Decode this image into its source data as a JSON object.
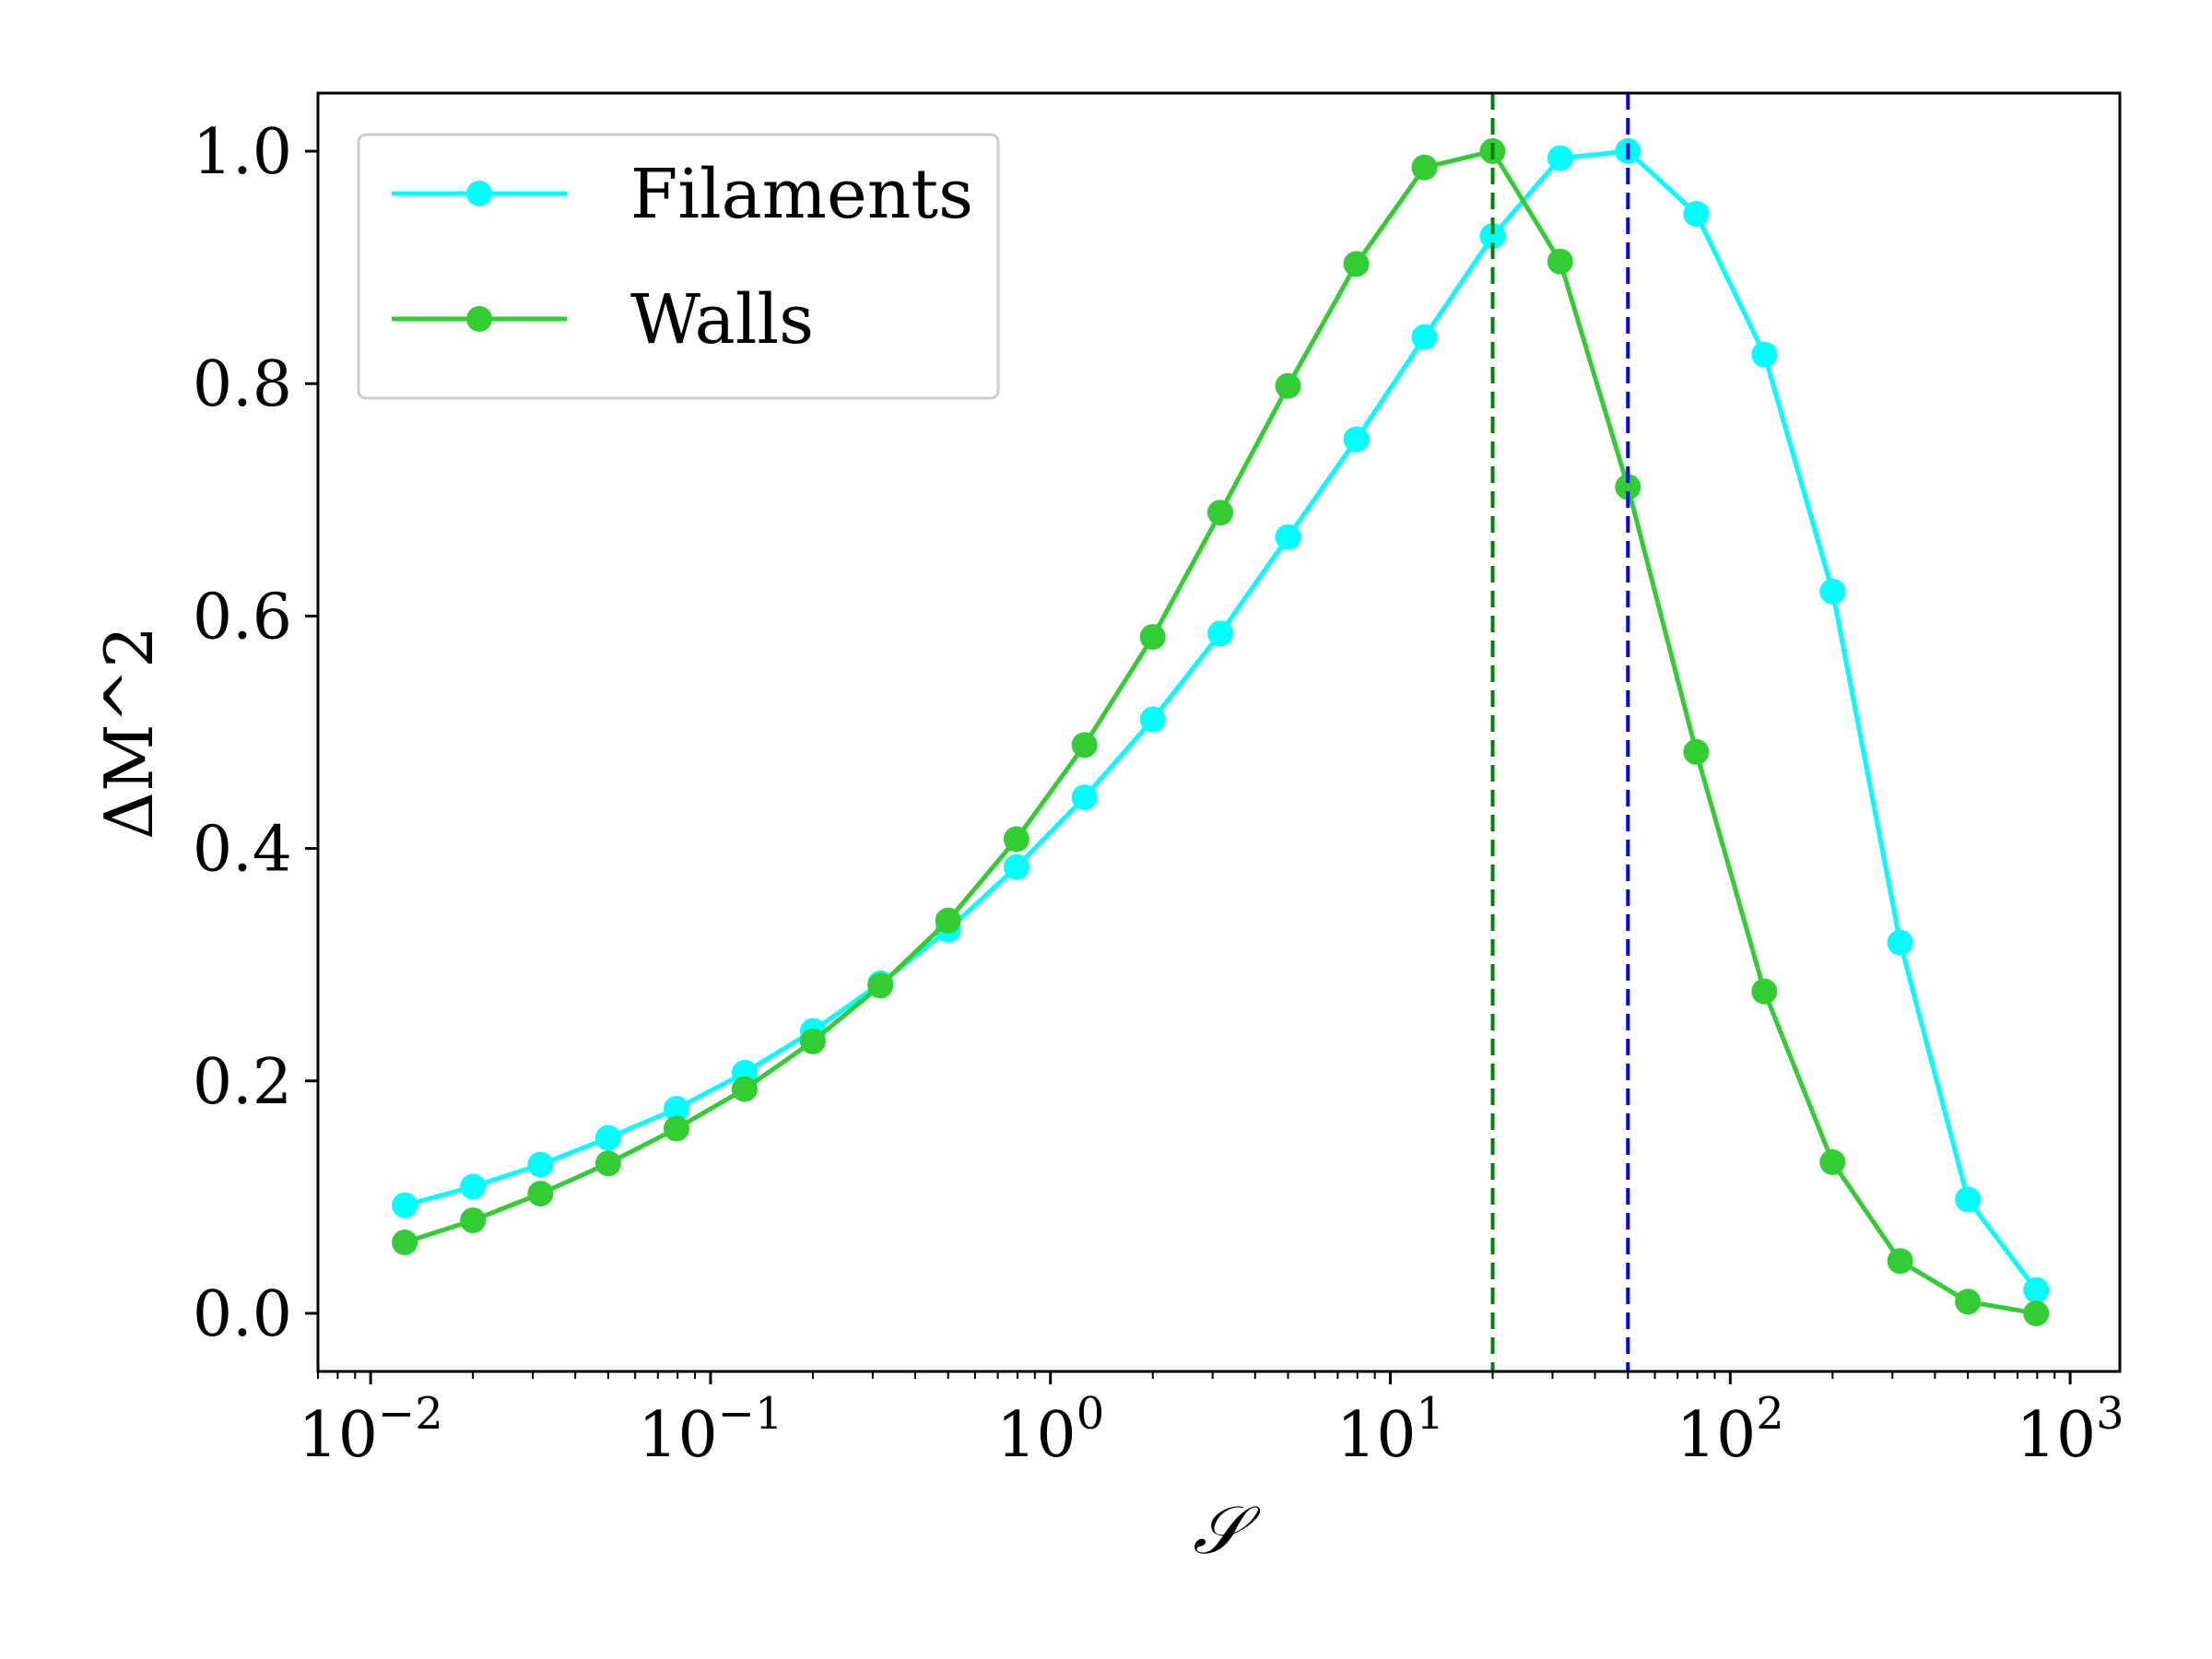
{
  "chart_data": {
    "type": "line",
    "xlabel": "𝒮",
    "ylabel": "ΔM^2",
    "xscale": "log",
    "xlim": [
      0.007,
      1400
    ],
    "ylim": [
      -0.05,
      1.05
    ],
    "grid": false,
    "legend_position": "top-left",
    "x_tick_labels": [
      {
        "value": 0.01,
        "base": "10",
        "exp": "−2"
      },
      {
        "value": 0.1,
        "base": "10",
        "exp": "−1"
      },
      {
        "value": 1,
        "base": "10",
        "exp": "0"
      },
      {
        "value": 10,
        "base": "10",
        "exp": "1"
      },
      {
        "value": 100,
        "base": "10",
        "exp": "2"
      },
      {
        "value": 1000,
        "base": "10",
        "exp": "3"
      }
    ],
    "y_ticks": [
      0.0,
      0.2,
      0.4,
      0.6,
      0.8,
      1.0
    ],
    "y_tick_labels": [
      "0.0",
      "0.2",
      "0.4",
      "0.6",
      "0.8",
      "1.0"
    ],
    "x": [
      0.0126,
      0.02,
      0.0316,
      0.05,
      0.0794,
      0.126,
      0.2,
      0.316,
      0.5,
      0.794,
      1.26,
      2.0,
      3.16,
      5.0,
      7.94,
      12.6,
      20.0,
      31.6,
      50.0,
      79.4,
      126,
      200,
      316,
      500,
      794
    ],
    "series": [
      {
        "name": "Filaments",
        "color": "#00ffff",
        "values": [
          0.093,
          0.109,
          0.128,
          0.151,
          0.176,
          0.207,
          0.243,
          0.284,
          0.33,
          0.384,
          0.444,
          0.511,
          0.585,
          0.668,
          0.752,
          0.84,
          0.927,
          0.994,
          1.0,
          0.946,
          0.825,
          0.621,
          0.319,
          0.098,
          0.02
        ]
      },
      {
        "name": "Walls",
        "color": "#32cd32",
        "values": [
          0.061,
          0.08,
          0.103,
          0.129,
          0.159,
          0.193,
          0.234,
          0.282,
          0.338,
          0.408,
          0.489,
          0.582,
          0.689,
          0.798,
          0.903,
          0.986,
          1.0,
          0.905,
          0.711,
          0.483,
          0.277,
          0.13,
          0.045,
          0.01,
          0.0
        ]
      }
    ],
    "vlines": [
      {
        "x": 20.0,
        "color": "#008000",
        "style": "dashed"
      },
      {
        "x": 50.0,
        "color": "#0000ff",
        "style": "dashed"
      }
    ]
  }
}
